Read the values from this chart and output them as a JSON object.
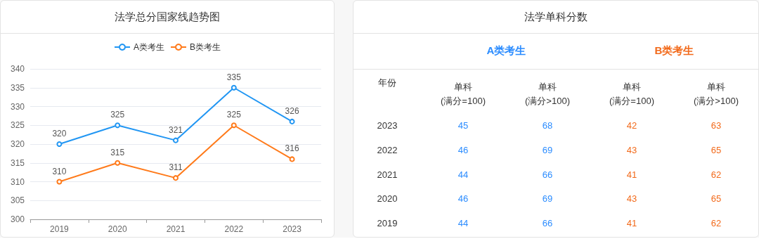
{
  "chart_data": [
    {
      "type": "line",
      "title": "法学总分国家线趋势图",
      "categories": [
        "2019",
        "2020",
        "2021",
        "2022",
        "2023"
      ],
      "series": [
        {
          "name": "A类考生",
          "color": "#2196f3",
          "values": [
            320,
            325,
            321,
            335,
            326
          ]
        },
        {
          "name": "B类考生",
          "color": "#ff7a1a",
          "values": [
            310,
            315,
            311,
            325,
            316
          ]
        }
      ],
      "ylim": [
        300,
        340
      ],
      "yticks": [
        300,
        305,
        310,
        315,
        320,
        325,
        330,
        335,
        340
      ],
      "grid": "y",
      "legend": "top",
      "marker": "circle",
      "line_style": "solid",
      "data_labels": true
    },
    {
      "type": "heatmap",
      "title": "法学单科分数",
      "ylabel": "年份",
      "annotations": [
        "A类考生",
        "B类考生"
      ],
      "categories": [
        "单科\n(满分=100)",
        "单科\n(满分>100)",
        "单科\n(满分=100)",
        "单科\n(满分>100)"
      ],
      "colors": [
        "#2b8cff",
        "#2b8cff",
        "#f26a1b",
        "#f26a1b"
      ],
      "y_categories": [
        "2023",
        "2022",
        "2021",
        "2020",
        "2019"
      ],
      "cells": [
        [
          45,
          68,
          42,
          63
        ],
        [
          46,
          69,
          43,
          65
        ],
        [
          44,
          66,
          41,
          62
        ],
        [
          46,
          69,
          43,
          65
        ],
        [
          44,
          66,
          41,
          62
        ]
      ],
      "data_labels": true
    }
  ]
}
